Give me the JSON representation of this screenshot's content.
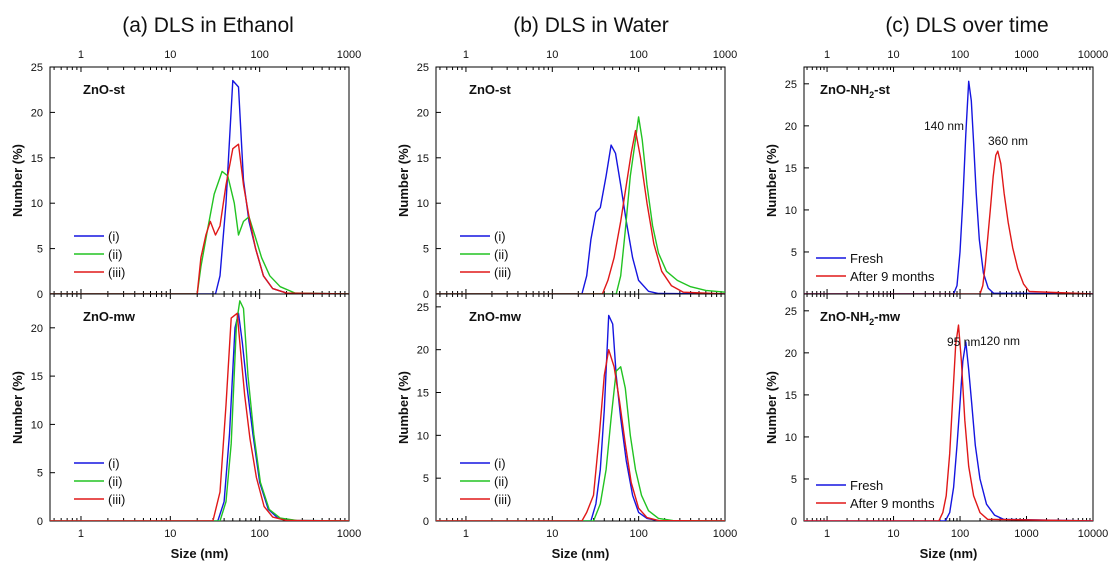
{
  "colors": {
    "blue": "#1515e0",
    "green": "#22c322",
    "red": "#e01818",
    "axis": "#000000"
  },
  "panels": [
    {
      "title": "(a) DLS in Ethanol",
      "x_ticks": [
        "1",
        "10",
        "100",
        "1000"
      ],
      "x_label": "Size (nm)",
      "subplots": [
        {
          "sample": "ZnO-st",
          "ylabel": "Number (%)",
          "y_ticks": [
            "0",
            "5",
            "10",
            "15",
            "20",
            "25"
          ]
        },
        {
          "sample": "ZnO-mw",
          "ylabel": "Number (%)",
          "y_ticks": [
            "0",
            "5",
            "10",
            "15",
            "20"
          ]
        }
      ]
    },
    {
      "title": "(b) DLS in Water",
      "x_ticks": [
        "1",
        "10",
        "100",
        "1000"
      ],
      "x_label": "Size (nm)",
      "subplots": [
        {
          "sample": "ZnO-st",
          "ylabel": "Number (%)",
          "y_ticks": [
            "0",
            "5",
            "10",
            "15",
            "20",
            "25"
          ]
        },
        {
          "sample": "ZnO-mw",
          "ylabel": "Number (%)",
          "y_ticks": [
            "0",
            "5",
            "10",
            "15",
            "20",
            "25"
          ]
        }
      ]
    },
    {
      "title": "(c) DLS over time",
      "x_ticks": [
        "1",
        "10",
        "100",
        "1000",
        "10000"
      ],
      "x_label": "Size (nm)",
      "subplots": [
        {
          "sample_main": "ZnO-NH",
          "sample_sub": "2",
          "sample_tail": "-st",
          "ylabel": "Number (%)",
          "y_ticks": [
            "0",
            "5",
            "10",
            "15",
            "20",
            "25"
          ]
        },
        {
          "sample_main": "ZnO-NH",
          "sample_sub": "2",
          "sample_tail": "-mw",
          "ylabel": "Number (%)",
          "y_ticks": [
            "0",
            "5",
            "10",
            "15",
            "20",
            "25"
          ]
        }
      ]
    }
  ],
  "chart_data": [
    {
      "type": "line",
      "title": "(a) DLS in Ethanol",
      "sample": "ZnO-st",
      "xlabel": "Size (nm)",
      "ylabel": "Number (%)",
      "xscale": "log",
      "xlim": [
        0.45,
        1000
      ],
      "ylim": [
        0,
        25
      ],
      "legend": "left",
      "series": [
        {
          "name": "(i)",
          "color": "blue",
          "x": [
            0.45,
            32,
            36,
            42,
            50,
            58,
            66,
            76,
            90,
            110,
            140,
            200,
            1000
          ],
          "y": [
            0,
            0,
            2,
            10,
            23.5,
            22.8,
            12.5,
            8,
            5,
            2,
            0.6,
            0.1,
            0
          ]
        },
        {
          "name": "(ii)",
          "color": "green",
          "x": [
            0.45,
            20,
            22,
            26,
            31,
            38,
            44,
            52,
            58,
            66,
            76,
            88,
            105,
            130,
            170,
            250,
            1000
          ],
          "y": [
            0,
            0,
            3,
            7,
            11,
            13.5,
            13,
            10,
            6.5,
            8,
            8.5,
            6.5,
            4,
            2,
            0.8,
            0.1,
            0
          ]
        },
        {
          "name": "(iii)",
          "color": "red",
          "x": [
            0.45,
            20,
            22,
            25,
            28,
            32,
            36,
            42,
            50,
            58,
            66,
            76,
            90,
            110,
            140,
            200,
            1000
          ],
          "y": [
            0,
            0,
            4,
            6.5,
            8,
            6.5,
            7.5,
            12,
            16,
            16.5,
            12,
            8.5,
            5,
            2,
            0.6,
            0.1,
            0
          ]
        }
      ]
    },
    {
      "type": "line",
      "title": "(a) DLS in Ethanol",
      "sample": "ZnO-mw",
      "xlabel": "Size (nm)",
      "ylabel": "Number (%)",
      "xscale": "log",
      "xlim": [
        0.45,
        1000
      ],
      "ylim": [
        0,
        23.5
      ],
      "legend": "left",
      "series": [
        {
          "name": "(i)",
          "color": "blue",
          "x": [
            0.45,
            34,
            40,
            46,
            53,
            58,
            64,
            72,
            84,
            100,
            125,
            160,
            250,
            1000
          ],
          "y": [
            0,
            0,
            2,
            9,
            20,
            21.5,
            18.5,
            14,
            9,
            4,
            1.2,
            0.3,
            0.05,
            0
          ]
        },
        {
          "name": "(ii)",
          "color": "green",
          "x": [
            0.45,
            36,
            42,
            48,
            55,
            60,
            66,
            74,
            86,
            102,
            128,
            170,
            260,
            1000
          ],
          "y": [
            0,
            0,
            2,
            8,
            20.5,
            22.8,
            22,
            15,
            9,
            4,
            1.2,
            0.3,
            0.05,
            0
          ]
        },
        {
          "name": "(iii)",
          "color": "red",
          "x": [
            0.45,
            30,
            36,
            42,
            48,
            56,
            62,
            68,
            78,
            92,
            112,
            140,
            200,
            1000
          ],
          "y": [
            0,
            0,
            3,
            12,
            21,
            21.5,
            17,
            13,
            8.5,
            4.5,
            1.5,
            0.4,
            0.05,
            0
          ]
        }
      ]
    },
    {
      "type": "line",
      "title": "(b) DLS in Water",
      "sample": "ZnO-st",
      "xlabel": "Size (nm)",
      "ylabel": "Number (%)",
      "xscale": "log",
      "xlim": [
        0.45,
        1000
      ],
      "ylim": [
        0,
        25
      ],
      "legend": "left",
      "series": [
        {
          "name": "(i)",
          "color": "blue",
          "x": [
            0.45,
            22,
            25,
            28,
            32,
            36,
            42,
            48,
            54,
            62,
            72,
            85,
            100,
            130,
            170,
            1000
          ],
          "y": [
            0,
            0,
            2,
            6,
            9,
            9.5,
            13,
            16.4,
            15.5,
            12,
            8,
            4,
            1.5,
            0.3,
            0.05,
            0
          ]
        },
        {
          "name": "(ii)",
          "color": "green",
          "x": [
            0.45,
            55,
            62,
            70,
            80,
            92,
            100,
            110,
            125,
            145,
            170,
            210,
            280,
            400,
            600,
            1000
          ],
          "y": [
            0,
            0,
            2,
            7,
            13,
            17,
            19.5,
            17,
            12,
            7.5,
            4.5,
            2.5,
            1.5,
            0.8,
            0.4,
            0.2
          ]
        },
        {
          "name": "(iii)",
          "color": "red",
          "x": [
            0.45,
            38,
            44,
            52,
            62,
            72,
            82,
            92,
            105,
            125,
            150,
            185,
            240,
            330,
            1000
          ],
          "y": [
            0,
            0,
            1.5,
            4,
            8,
            12,
            15.5,
            18,
            15,
            10,
            5.5,
            2.5,
            0.9,
            0.2,
            0
          ]
        }
      ]
    },
    {
      "type": "line",
      "title": "(b) DLS in Water",
      "sample": "ZnO-mw",
      "xlabel": "Size (nm)",
      "ylabel": "Number (%)",
      "xscale": "log",
      "xlim": [
        0.45,
        1000
      ],
      "ylim": [
        0,
        26.5
      ],
      "legend": "left",
      "series": [
        {
          "name": "(i)",
          "color": "blue",
          "x": [
            0.45,
            28,
            32,
            36,
            40,
            45,
            50,
            55,
            62,
            72,
            85,
            100,
            125,
            170,
            1000
          ],
          "y": [
            0,
            0,
            2,
            6,
            13,
            24,
            23,
            17,
            12,
            7,
            3,
            1,
            0.3,
            0.05,
            0
          ]
        },
        {
          "name": "(ii)",
          "color": "green",
          "x": [
            0.45,
            30,
            36,
            42,
            48,
            55,
            62,
            70,
            80,
            92,
            108,
            130,
            170,
            250,
            1000
          ],
          "y": [
            0,
            0,
            2,
            6,
            12,
            17.5,
            18,
            15.5,
            10,
            6,
            3,
            1.2,
            0.3,
            0.05,
            0
          ]
        },
        {
          "name": "(iii)",
          "color": "red",
          "x": [
            0.45,
            22,
            25,
            30,
            35,
            40,
            45,
            52,
            60,
            70,
            82,
            100,
            125,
            170,
            1000
          ],
          "y": [
            0,
            0,
            1,
            3,
            10,
            17,
            20,
            18,
            14,
            9,
            4.5,
            1.5,
            0.4,
            0.05,
            0
          ]
        }
      ]
    },
    {
      "type": "line",
      "title": "(c) DLS over time",
      "sample": "ZnO-NH2-st",
      "xlabel": "Size (nm)",
      "ylabel": "Number (%)",
      "xscale": "log",
      "xlim": [
        0.45,
        10000
      ],
      "ylim": [
        0,
        27
      ],
      "legend": "bottom-left",
      "annotations": [
        "140 nm",
        "360 nm"
      ],
      "series": [
        {
          "name": "Fresh",
          "color": "blue",
          "x": [
            0.45,
            80,
            90,
            100,
            110,
            122,
            135,
            148,
            160,
            175,
            195,
            225,
            265,
            320,
            10000
          ],
          "y": [
            0,
            0,
            1,
            5,
            11,
            19,
            25.3,
            23,
            18,
            12,
            6.5,
            2.5,
            0.7,
            0.1,
            0
          ]
        },
        {
          "name": "After 9 months",
          "color": "red",
          "x": [
            0.45,
            200,
            220,
            240,
            260,
            285,
            315,
            345,
            370,
            410,
            460,
            530,
            620,
            740,
            900,
            1100,
            10000
          ],
          "y": [
            0,
            0,
            1,
            3.5,
            6.5,
            10,
            14,
            16.5,
            17,
            15.5,
            12,
            8.5,
            5.5,
            3,
            1.2,
            0.3,
            0
          ]
        }
      ]
    },
    {
      "type": "line",
      "title": "(c) DLS over time",
      "sample": "ZnO-NH2-mw",
      "xlabel": "Size (nm)",
      "ylabel": "Number (%)",
      "xscale": "log",
      "xlim": [
        0.45,
        10000
      ],
      "ylim": [
        0,
        27
      ],
      "legend": "bottom-left",
      "annotations": [
        "95 nm",
        "120 nm"
      ],
      "series": [
        {
          "name": "Fresh",
          "color": "blue",
          "x": [
            0.45,
            60,
            70,
            80,
            90,
            100,
            110,
            122,
            135,
            150,
            170,
            200,
            250,
            330,
            450,
            10000
          ],
          "y": [
            0,
            0,
            1,
            4,
            9,
            14,
            19,
            21.3,
            18,
            14,
            9,
            5,
            2,
            0.7,
            0.2,
            0
          ]
        },
        {
          "name": "After 9 months",
          "color": "red",
          "x": [
            0.45,
            48,
            55,
            62,
            70,
            78,
            86,
            95,
            105,
            118,
            135,
            160,
            200,
            260,
            10000
          ],
          "y": [
            0,
            0,
            1,
            3,
            8,
            15,
            21,
            23.3,
            19,
            12,
            6.5,
            3,
            1,
            0.2,
            0
          ]
        }
      ]
    }
  ]
}
